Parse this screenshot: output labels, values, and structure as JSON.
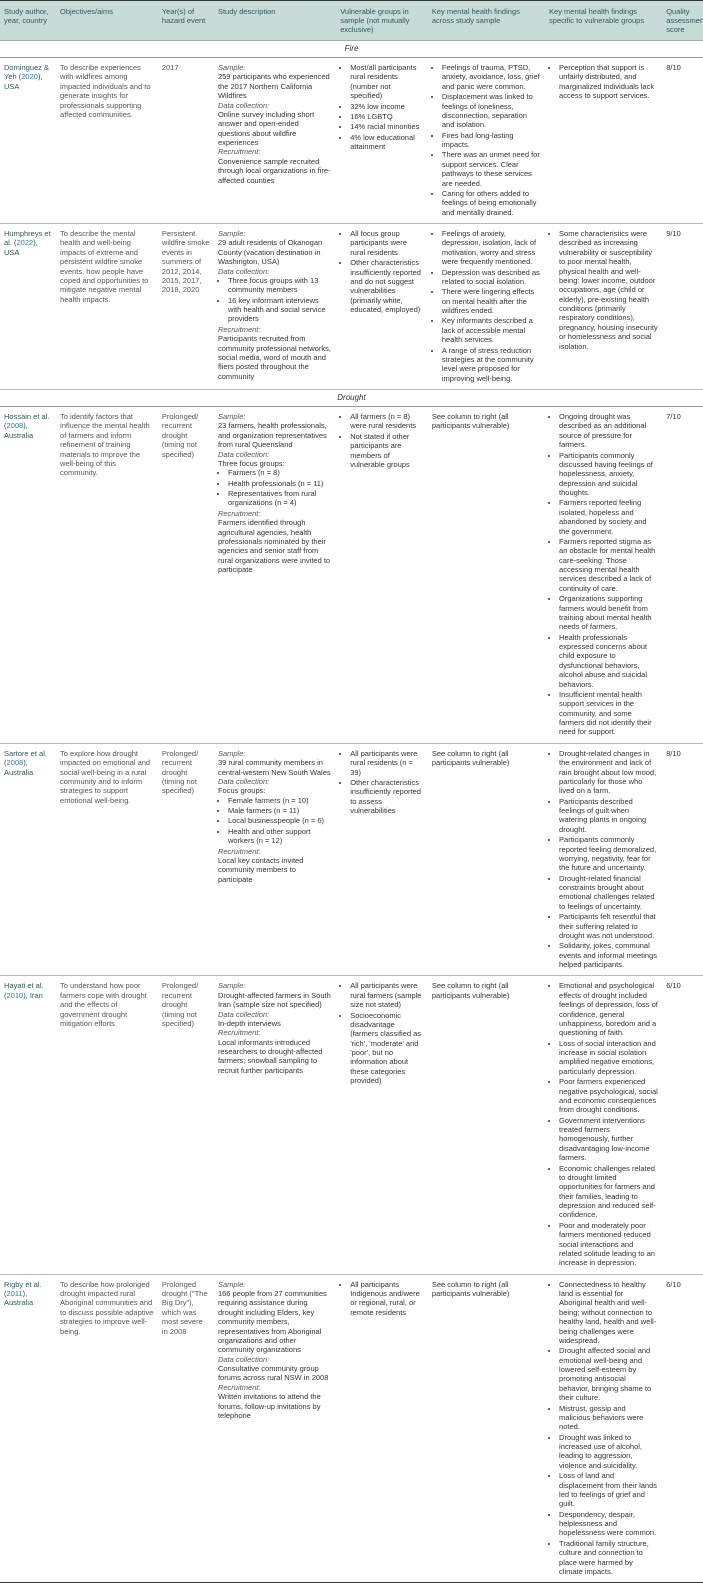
{
  "headers": [
    "Study author, year, country",
    "Objectives/aims",
    "Year(s) of hazard event",
    "Study description",
    "Vulnerable groups in sample (not mutually exclusive)",
    "Key mental health findings across study sample",
    "Key mental health findings specific to vulnerable groups",
    "Quality assessment score"
  ],
  "sections": [
    {
      "title": "Fire",
      "rows": [
        {
          "author_pre": "Dominguez & Yeh (",
          "year_link": "2020",
          "author_post": "), USA",
          "objectives": "To describe experiences with wildfires among impacted individuals and to generate insights for professionals supporting affected communities.",
          "hazard": "2017",
          "desc_blocks": [
            {
              "label": "Sample:",
              "text": "259 participants who experienced the 2017 Northern California Wildfires"
            },
            {
              "label": "Data collection:",
              "text": "Online survey including short answer and open-ended questions about wildfire experiences"
            },
            {
              "label": "Recruitment:",
              "text": "Convenience sample recruited through local organizations in fire-affected counties"
            }
          ],
          "vuln": [
            "Most/all participants rural residents (number not specified)",
            "32% low income",
            "16% LGBTQ",
            "14% racial minorities",
            "4% low educational attainment"
          ],
          "findings_all": [
            "Feelings of trauma, PTSD, anxiety, avoidance, loss, grief and panic were common.",
            "Displacement was linked to feelings of loneliness, disconnection, separation and isolation.",
            "Fires had long-lasting impacts.",
            "There was an unmet need for support services. Clear pathways to these services are needed.",
            "Caring for others added to feelings of being emotionally and mentally drained."
          ],
          "findings_vuln": [
            "Perception that support is unfairly distributed, and marginalized individuals lack access to support services."
          ],
          "score": "8/10"
        },
        {
          "author_pre": "Humphreys et al. (",
          "year_link": "2022",
          "author_post": "), USA",
          "objectives": "To describe the mental health and well-being impacts of extreme and persistent wildfire smoke events, how people have coped and opportunities to mitigate negative mental health impacts.",
          "hazard": "Persistent wildfire smoke events in summers of 2012, 2014, 2015, 2017, 2018, 2020",
          "desc_blocks": [
            {
              "label": "Sample:",
              "text": "29 adult residents of Okanogan County (vacation destination in Washington, USA)"
            },
            {
              "label": "Data collection:",
              "list": [
                "Three focus groups with 13 community members",
                "16 key informant interviews with health and social service providers"
              ]
            },
            {
              "label": "Recruitment:",
              "text": "Participants recruited from community professional networks, social media, word of mouth and fliers posted throughout the community"
            }
          ],
          "vuln": [
            "All focus group participants were rural residents",
            "Other characteristics insufficiently reported and do not suggest vulnerabilities (primarily white, educated, employed)"
          ],
          "findings_all": [
            "Feelings of anxiety, depression, isolation, lack of motivation, worry and stress were frequently mentioned.",
            "Depression was described as related to social isolation.",
            "There were lingering effects on mental health after the wildfires ended.",
            "Key informants described a lack of accessible mental health services.",
            "A range of stress reduction strategies at the community level were proposed for improving well-being."
          ],
          "findings_vuln": [
            "Some characteristics were described as increasing vulnerability or susceptibility to poor mental health, physical health and well-being: lower income, outdoor occupations, age (child or elderly), pre-existing health conditions (primarily respiratory conditions), pregnancy, housing insecurity or homelessness and social isolation."
          ],
          "score": "9/10"
        }
      ]
    },
    {
      "title": "Drought",
      "rows": [
        {
          "author_pre": "Hossain et al. (",
          "year_link": "2008",
          "author_post": "), Australia",
          "objectives": "To identify factors that influence the mental health of farmers and inform refinement of training materials to improve the well-being of this community.",
          "hazard": "Prolonged/ recurrent drought (timing not specified)",
          "desc_blocks": [
            {
              "label": "Sample:",
              "text": "23 farmers, health professionals, and organization representatives from rural Queensland"
            },
            {
              "label": "Data collection:",
              "text": "Three focus groups:",
              "list": [
                "Farmers (n = 8)",
                "Health professionals (n = 11)",
                "Representatives from rural organizations (n = 4)"
              ]
            },
            {
              "label": "Recruitment:",
              "text": "Farmers identified through agricultural agencies, health professionals nominated by their agencies and senior staff from rural organizations were invited to participate"
            }
          ],
          "vuln": [
            "All farmers (n = 8) were rural residents",
            "Not stated if other participants are members of vulnerable groups"
          ],
          "findings_all_text": "See column to right (all participants vulnerable)",
          "findings_vuln": [
            "Ongoing drought was described as an additional source of pressure for farmers.",
            "Participants commonly discussed having feelings of hopelessness, anxiety, depression and suicidal thoughts.",
            "Farmers reported feeling isolated, hopeless and abandoned by society and the government.",
            "Farmers reported stigma as an obstacle for mental health care-seeking. Those accessing mental health services described a lack of continuity of care.",
            "Organizations supporting farmers would benefit from training about mental health needs of farmers.",
            "Health professionals expressed concerns about child exposure to dysfunctional behaviors, alcohol abuse and suicidal behaviors.",
            "Insufficient mental health support services in the community, and some farmers did not identify their need for support."
          ],
          "score": "7/10"
        },
        {
          "author_pre": "Sartore et al. (",
          "year_link": "2008",
          "author_post": "), Australia",
          "objectives": "To explore how drought impacted on emotional and social well-being in a rural community and to inform strategies to support emotional well-being.",
          "hazard": "Prolonged/ recurrent drought (timing not specified)",
          "desc_blocks": [
            {
              "label": "Sample:",
              "text": "39 rural community members in central-western New South Wales"
            },
            {
              "label": "Data collection:",
              "text": "Focus groups:",
              "list": [
                "Female farmers (n = 10)",
                "Male farmers (n = 11)",
                "Local businesspeople (n = 6)",
                "Health and other support workers (n = 12)"
              ]
            },
            {
              "label": "Recruitment:",
              "text": "Local key contacts invited community members to participate"
            }
          ],
          "vuln": [
            "All participants were rural residents (n = 39)",
            "Other characteristics insufficiently reported to assess vulnerabilities"
          ],
          "findings_all_text": "See column to right (all participants vulnerable)",
          "findings_vuln": [
            "Drought-related changes in the environment and lack of rain brought about low mood, particularly for those who lived on a farm.",
            "Participants described feelings of guilt when watering plants in ongoing drought.",
            "Participants commonly reported feeling demoralized, worrying, negativity, fear for the future and uncertainty.",
            "Drought-related financial constraints brought about emotional challenges related to feelings of uncertainty.",
            "Participants felt resentful that their suffering related to drought was not understood.",
            "Solidarity, jokes, communal events and informal meetings helped participants."
          ],
          "score": "8/10"
        },
        {
          "author_pre": "Hayati et al. (",
          "year_link": "2010",
          "author_post": "), Iran",
          "objectives": "To understand how poor farmers cope with drought and the effects of government drought mitigation efforts",
          "hazard": "Prolonged/ recurrent drought (timing not specified)",
          "desc_blocks": [
            {
              "label": "Sample:",
              "text": "Drought-affected farmers in South Iran (sample size not specified)"
            },
            {
              "label": "Data collection:",
              "text": "In-depth interviews"
            },
            {
              "label": "Recruitment:",
              "text": "Local informants introduced researchers to drought-affected farmers; snowball sampling to recruit further participants"
            }
          ],
          "vuln": [
            "All participants were rural farmers (sample size not stated)",
            "Socioeconomic disadvantage (farmers classified as 'rich', 'moderate' and 'poor', but no information about these categories provided)"
          ],
          "findings_all_text": "See column to right (all participants vulnerable)",
          "findings_vuln": [
            "Emotional and psychological effects of drought included feelings of depression, loss of confidence, general unhappiness, boredom and a questioning of faith.",
            "Loss of social interaction and increase in social isolation amplified negative emotions, particularly depression.",
            "Poor farmers experienced negative psychological, social and economic consequences from drought conditions.",
            "Government interventions treated farmers homogenously, further disadvantaging low-income farmers.",
            "Economic challenges related to drought limited opportunities for farmers and their families, leading to depression and reduced self-confidence.",
            "Poor and moderately poor farmers mentioned reduced social interactions and related solitude leading to an increase in depression."
          ],
          "score": "6/10"
        },
        {
          "author_pre": "Rigby et al. (",
          "year_link": "2011",
          "author_post": "), Australia",
          "objectives": "To describe how prolonged drought impacted rural Aboriginal communities and to discuss possible adaptive strategies to improve well-being.",
          "hazard": "Prolonged drought (\"The Big Dry\"), which was most severe in 2008",
          "desc_blocks": [
            {
              "label": "Sample:",
              "text": "166 people from 27 communities requiring assistance during drought including Elders, key community members, representatives from Aboriginal organizations and other community organizations"
            },
            {
              "label": "Data collection:",
              "text": "Consultative community group forums across rural NSW in 2008"
            },
            {
              "label": "Recruitment:",
              "text": "Written invitations to attend the forums, follow-up invitations by telephone"
            }
          ],
          "vuln": [
            "All participants Indigenous and/were or regional, rural, or remote residents"
          ],
          "findings_all_text": "See column to right (all participants vulnerable)",
          "findings_vuln": [
            "Connectedness to healthy land is essential for Aboriginal health and well-being; without connection to healthy land, health and well-being challenges were widespread.",
            "Drought affected social and emotional well-being and lowered self-esteem by promoting antisocial behavior, bringing shame to their culture.",
            "Mistrust, gossip and malicious behaviors were noted.",
            "Drought was linked to increased use of alcohol, leading to aggression, violence and suicidality.",
            "Loss of land and displacement from their lands led to feelings of grief and guilt.",
            "Despondency, despair, helplessness and hopelessness were common.",
            "Traditional family structure, culture and connection to place were harmed by climate impacts."
          ],
          "score": "6/10"
        }
      ]
    }
  ]
}
